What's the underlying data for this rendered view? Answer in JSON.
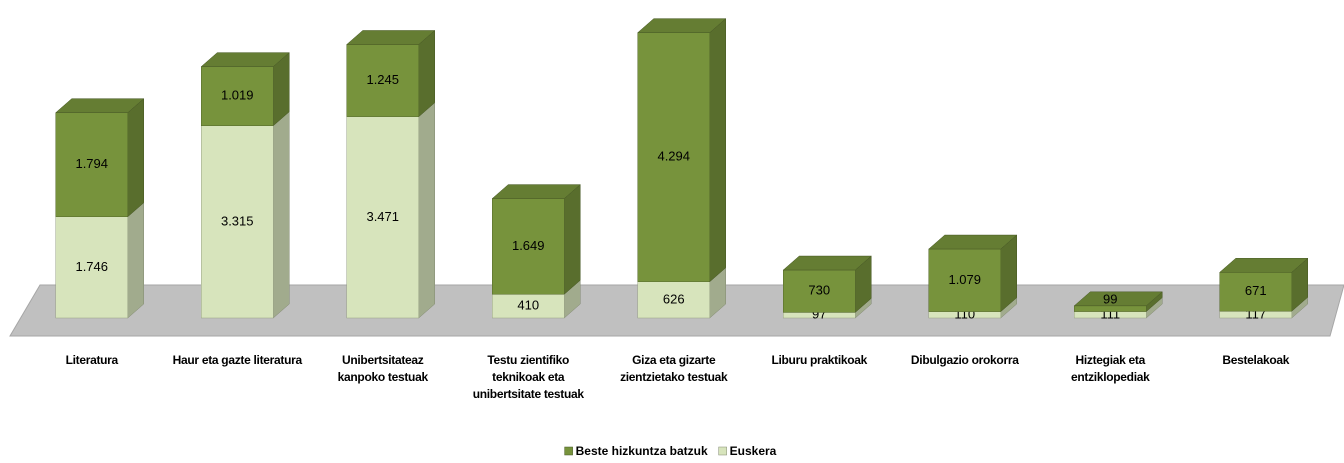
{
  "chart_data": {
    "type": "stacked_bar_3d",
    "categories": [
      "Literatura",
      "Haur eta gazte literatura",
      "Unibertsitateaz kanpoko testuak",
      "Testu zientifiko teknikoak eta unibertsitate testuak",
      "Giza eta gizarte zientzietako testuak",
      "Liburu praktikoak",
      "Dibulgazio orokorra",
      "Hiztegiak eta entziklopediak",
      "Bestelakoak"
    ],
    "series": [
      {
        "name": "Euskera",
        "color": "#d7e4bc",
        "values": [
          1746,
          3315,
          3471,
          410,
          626,
          97,
          110,
          111,
          117
        ],
        "value_labels": [
          "1.746",
          "3.315",
          "3.471",
          "410",
          "626",
          "97",
          "110",
          "111",
          "117"
        ]
      },
      {
        "name": "Beste hizkuntza batzuk",
        "color": "#77933c",
        "values": [
          1794,
          1019,
          1245,
          1649,
          4294,
          730,
          1079,
          99,
          671
        ],
        "value_labels": [
          "1.794",
          "1.019",
          "1.245",
          "1.649",
          "4.294",
          "730",
          "1.079",
          "99",
          "671"
        ]
      }
    ],
    "legend_order": [
      "Beste hizkuntza batzuk",
      "Euskera"
    ],
    "ylim": [
      0,
      5000
    ]
  }
}
